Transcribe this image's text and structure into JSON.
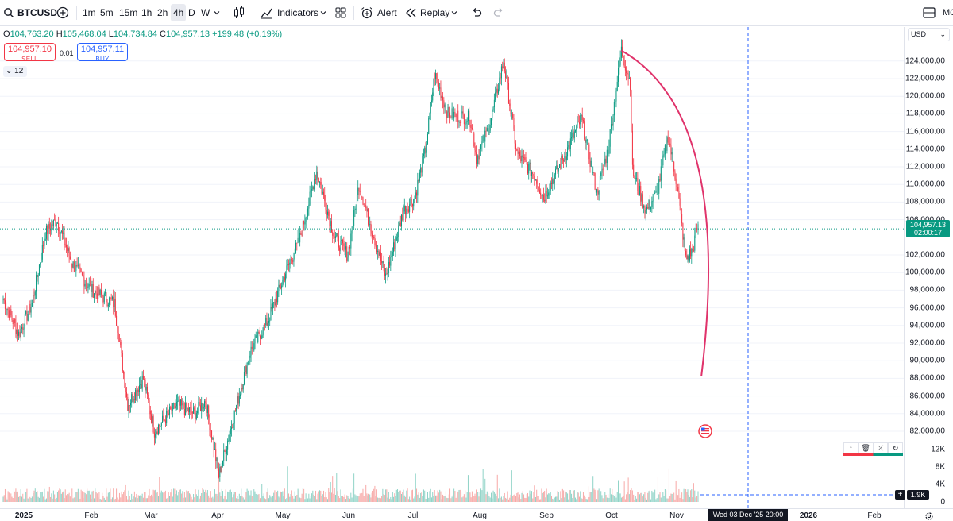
{
  "toolbar": {
    "symbol": "BTCUSD",
    "timeframes": [
      "1m",
      "5m",
      "15m",
      "1h",
      "2h",
      "4h",
      "D",
      "W"
    ],
    "active_timeframe": "4h",
    "indicators_label": "Indicators",
    "alert_label": "Alert",
    "replay_label": "Replay",
    "account_text": "MC"
  },
  "legend": {
    "o_key": "O",
    "o_val": "104,763.20",
    "h_key": "H",
    "h_val": "105,468.04",
    "l_key": "L",
    "l_val": "104,734.84",
    "c_key": "C",
    "c_val": "104,957.13",
    "change": "+199.48 (+0.19%)",
    "sell_price": "104,957.10",
    "sell_label": "SELL",
    "spread": "0.01",
    "buy_price": "104,957.11",
    "buy_label": "BUY",
    "collapse_count": "12"
  },
  "price_scale": {
    "currency": "USD",
    "labels": [
      "124,000.00",
      "122,000.00",
      "120,000.00",
      "118,000.00",
      "116,000.00",
      "114,000.00",
      "112,000.00",
      "110,000.00",
      "108,000.00",
      "106,000.00",
      "102,000.00",
      "100,000.00",
      "98,000.00",
      "96,000.00",
      "94,000.00",
      "92,000.00",
      "90,000.00",
      "88,000.00",
      "86,000.00",
      "84,000.00",
      "82,000.00"
    ],
    "label_values": [
      124000,
      122000,
      120000,
      118000,
      116000,
      114000,
      112000,
      110000,
      108000,
      106000,
      102000,
      100000,
      98000,
      96000,
      94000,
      92000,
      90000,
      88000,
      86000,
      84000,
      82000
    ],
    "current_price": "104,957.13",
    "countdown": "02:00:17",
    "volume_labels": [
      "12K",
      "8K",
      "4K",
      "0"
    ],
    "volume_label_values": [
      12000,
      8000,
      4000,
      0
    ],
    "crosshair_volume": "1.9K"
  },
  "time_axis": {
    "labels": [
      {
        "text": "2025",
        "bold": true
      },
      {
        "text": "Feb",
        "bold": false
      },
      {
        "text": "Mar",
        "bold": false
      },
      {
        "text": "Apr",
        "bold": false
      },
      {
        "text": "May",
        "bold": false
      },
      {
        "text": "Jun",
        "bold": false
      },
      {
        "text": "Jul",
        "bold": false
      },
      {
        "text": "Aug",
        "bold": false
      },
      {
        "text": "Sep",
        "bold": false
      },
      {
        "text": "Oct",
        "bold": false
      },
      {
        "text": "Nov",
        "bold": false
      },
      {
        "text": "2026",
        "bold": true
      },
      {
        "text": "Feb",
        "bold": false
      }
    ],
    "crosshair_time": "Wed 03 Dec '25   20:00"
  },
  "colors": {
    "up": "#089981",
    "down": "#f23645",
    "arc": "#e0336b",
    "crosshair": "#2962ff"
  },
  "chart_data": {
    "type": "candlestick",
    "symbol": "BTCUSD",
    "interval": "4h",
    "ylim": [
      81000,
      126000
    ],
    "xlim": [
      "2025-01-01",
      "2026-02-28"
    ],
    "anchor_points": [
      {
        "date": "2025-01-01",
        "price": 97000
      },
      {
        "date": "2025-01-08",
        "price": 93000
      },
      {
        "date": "2025-01-14",
        "price": 96500
      },
      {
        "date": "2025-01-20",
        "price": 104500
      },
      {
        "date": "2025-01-25",
        "price": 106000
      },
      {
        "date": "2025-02-01",
        "price": 101000
      },
      {
        "date": "2025-02-10",
        "price": 98000
      },
      {
        "date": "2025-02-20",
        "price": 96500
      },
      {
        "date": "2025-02-26",
        "price": 85000
      },
      {
        "date": "2025-03-05",
        "price": 88000
      },
      {
        "date": "2025-03-10",
        "price": 82000
      },
      {
        "date": "2025-03-20",
        "price": 85000
      },
      {
        "date": "2025-03-28",
        "price": 84000
      },
      {
        "date": "2025-04-02",
        "price": 85500
      },
      {
        "date": "2025-04-08",
        "price": 77000
      },
      {
        "date": "2025-04-15",
        "price": 84000
      },
      {
        "date": "2025-04-22",
        "price": 91000
      },
      {
        "date": "2025-04-30",
        "price": 94500
      },
      {
        "date": "2025-05-08",
        "price": 100000
      },
      {
        "date": "2025-05-14",
        "price": 103500
      },
      {
        "date": "2025-05-22",
        "price": 111500
      },
      {
        "date": "2025-05-30",
        "price": 104000
      },
      {
        "date": "2025-06-05",
        "price": 102000
      },
      {
        "date": "2025-06-10",
        "price": 110000
      },
      {
        "date": "2025-06-22",
        "price": 99500
      },
      {
        "date": "2025-06-30",
        "price": 107000
      },
      {
        "date": "2025-07-05",
        "price": 108500
      },
      {
        "date": "2025-07-10",
        "price": 114000
      },
      {
        "date": "2025-07-14",
        "price": 122500
      },
      {
        "date": "2025-07-20",
        "price": 118000
      },
      {
        "date": "2025-07-30",
        "price": 117500
      },
      {
        "date": "2025-08-02",
        "price": 113000
      },
      {
        "date": "2025-08-08",
        "price": 117000
      },
      {
        "date": "2025-08-14",
        "price": 124000
      },
      {
        "date": "2025-08-20",
        "price": 113500
      },
      {
        "date": "2025-08-28",
        "price": 111000
      },
      {
        "date": "2025-09-01",
        "price": 108500
      },
      {
        "date": "2025-09-10",
        "price": 113000
      },
      {
        "date": "2025-09-18",
        "price": 117500
      },
      {
        "date": "2025-09-25",
        "price": 109000
      },
      {
        "date": "2025-09-30",
        "price": 114000
      },
      {
        "date": "2025-10-06",
        "price": 125200
      },
      {
        "date": "2025-10-10",
        "price": 121500
      },
      {
        "date": "2025-10-11",
        "price": 111500
      },
      {
        "date": "2025-10-17",
        "price": 107000
      },
      {
        "date": "2025-10-22",
        "price": 109000
      },
      {
        "date": "2025-10-27",
        "price": 115500
      },
      {
        "date": "2025-10-31",
        "price": 110000
      },
      {
        "date": "2025-11-04",
        "price": 101500
      },
      {
        "date": "2025-11-07",
        "price": 102500
      },
      {
        "date": "2025-11-09",
        "price": 105000
      },
      {
        "date": "2025-11-10",
        "price": 104957
      }
    ],
    "arc": {
      "from": {
        "date": "2025-10-06",
        "price": 125200
      },
      "to": {
        "date": "2025-11-11",
        "price": 88300
      }
    }
  }
}
